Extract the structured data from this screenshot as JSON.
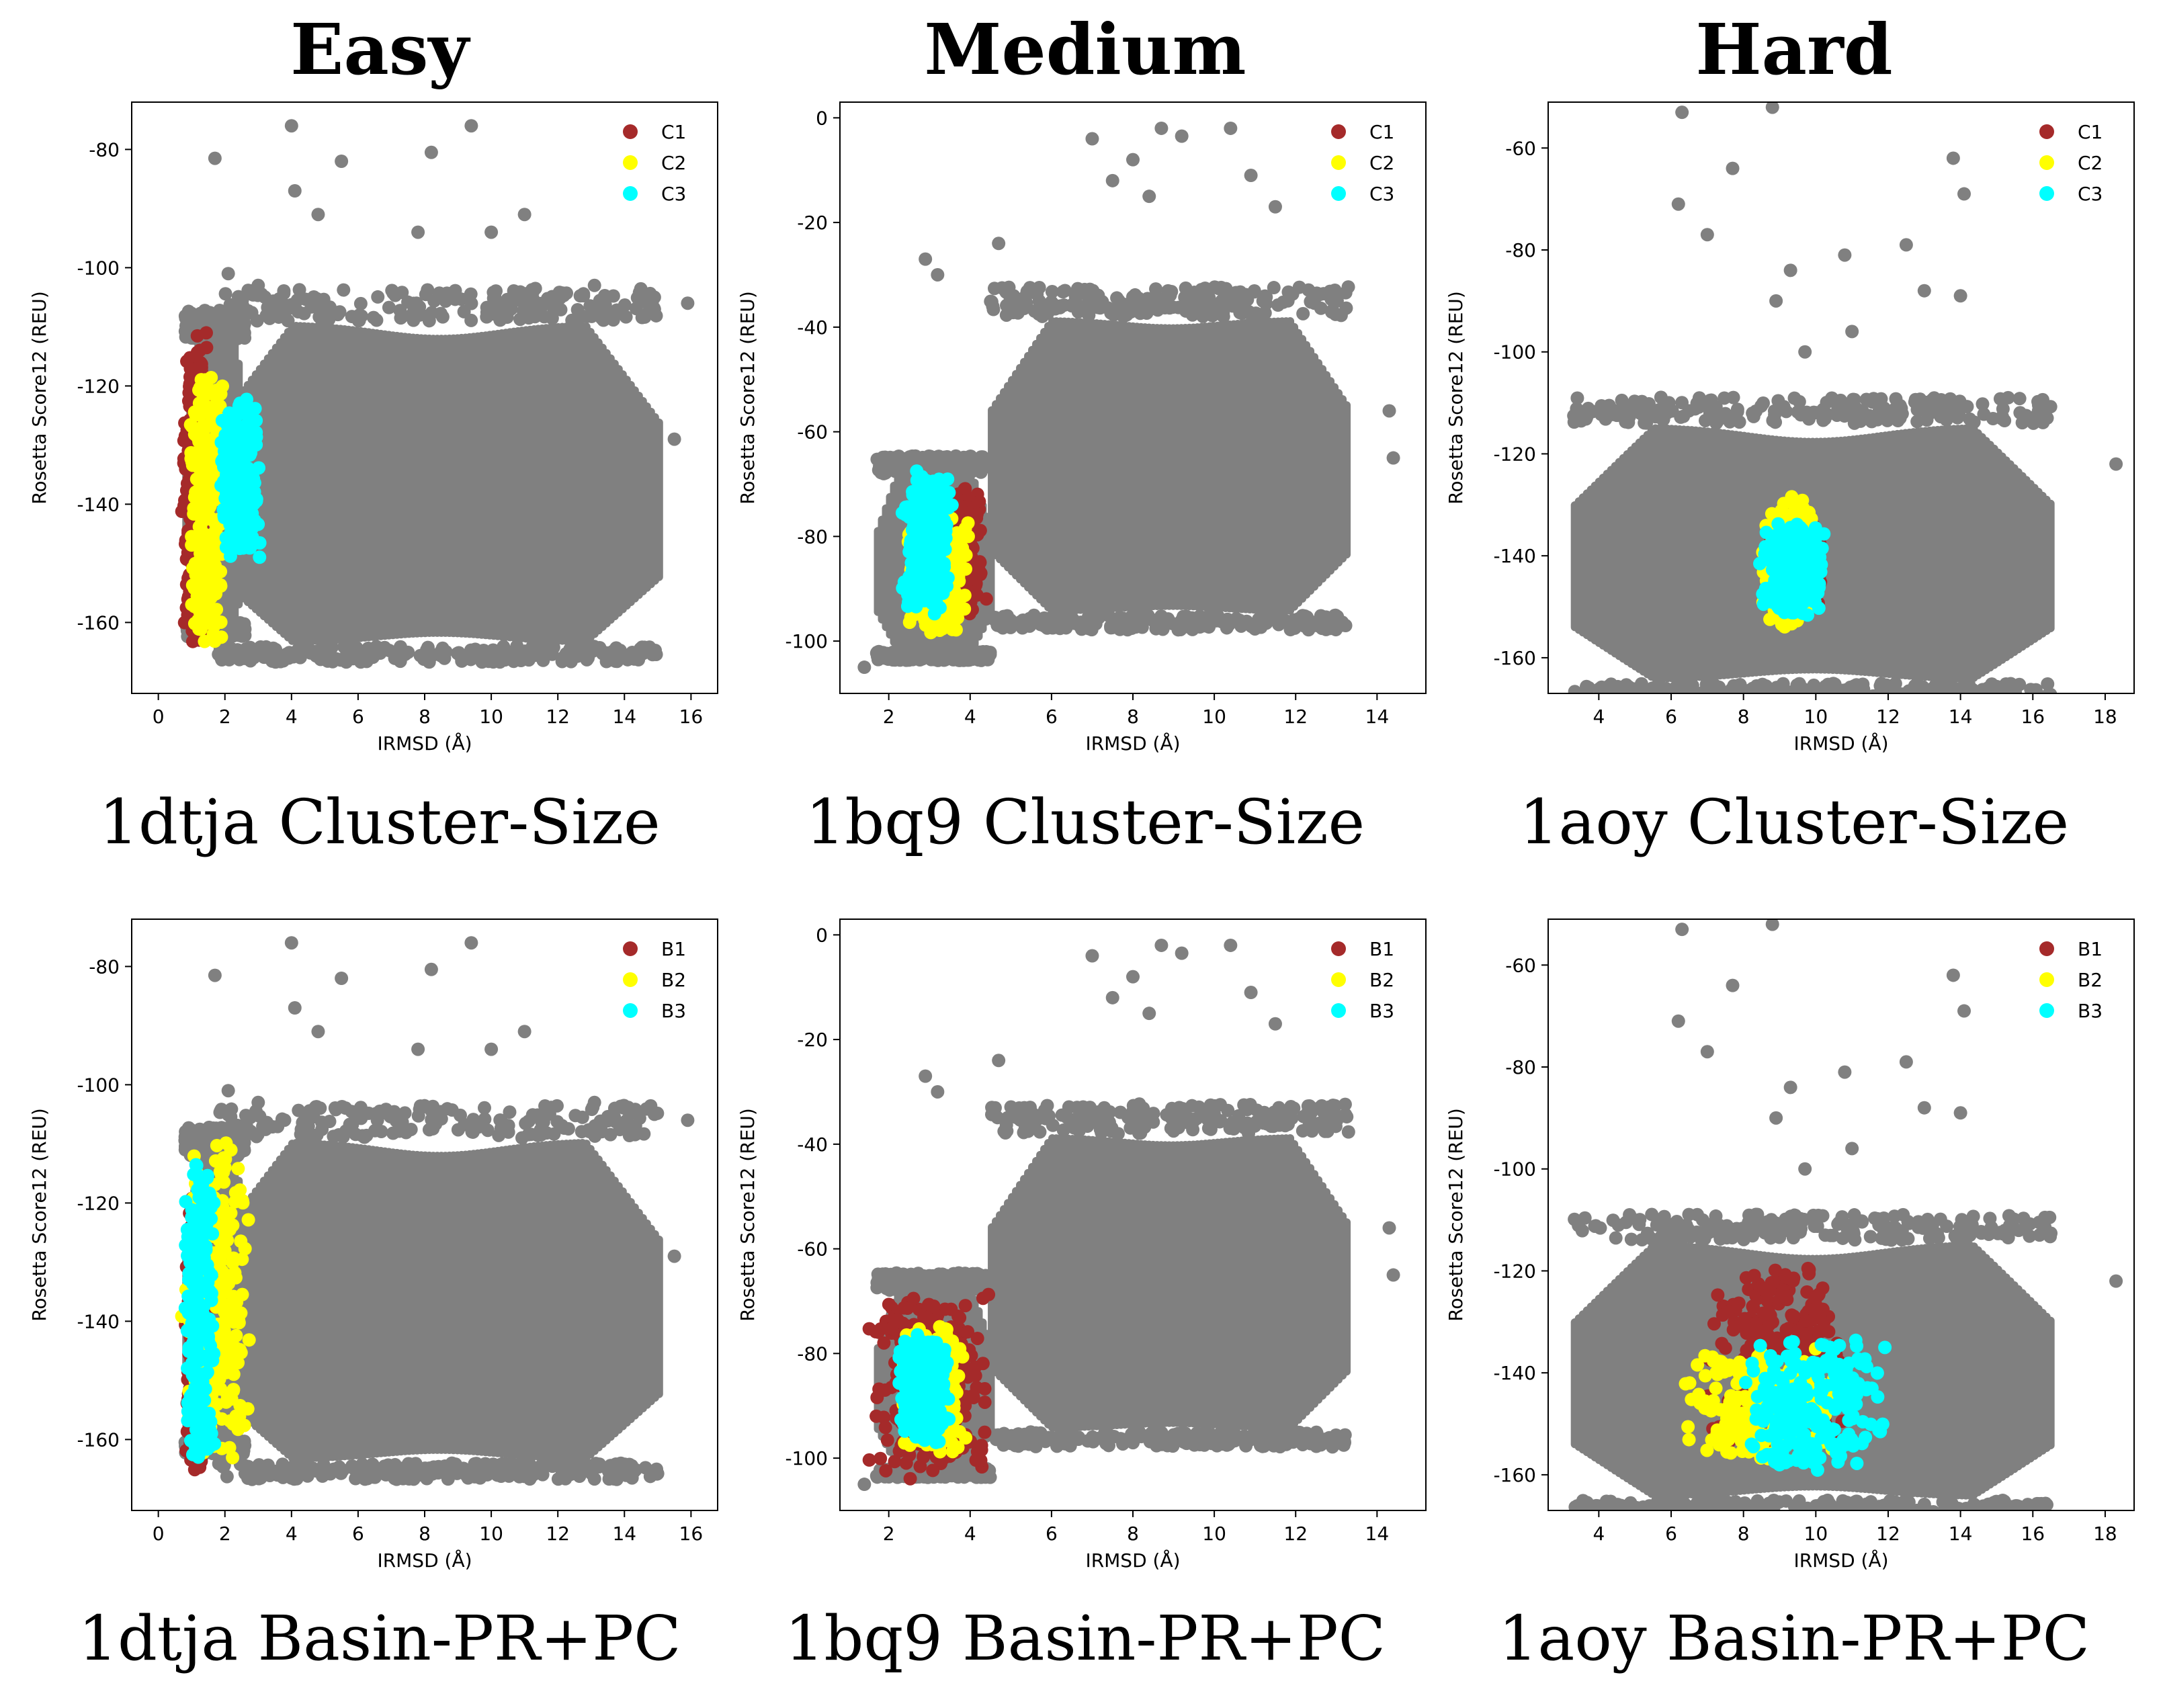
{
  "figure": {
    "column_titles": [
      "Easy",
      "Medium",
      "Hard"
    ],
    "captions": [
      "1dtja Cluster-Size",
      "1bq9 Cluster-Size",
      "1aoy Cluster-Size",
      "1dtja Basin-PR+PC",
      "1bq9 Basin-PR+PC",
      "1aoy Basin-PR+PC"
    ]
  },
  "colors": {
    "background_points": "#808080",
    "series_1": "#a52a2a",
    "series_2": "#ffff00",
    "series_3": "#00ffff"
  },
  "chart_data": [
    {
      "type": "scatter",
      "protein": "1dtja",
      "method": "Cluster-Size",
      "xlabel": "IRMSD (Å)",
      "ylabel": "Rosetta Score12 (REU)",
      "xlim": [
        -0.8,
        16.8
      ],
      "ylim": [
        -172,
        -72
      ],
      "xticks": [
        0,
        2,
        4,
        6,
        8,
        10,
        12,
        14,
        16
      ],
      "yticks": [
        -160,
        -140,
        -120,
        -100,
        -80
      ],
      "legend_position": "top-right",
      "background": {
        "blobs": [
          [
            1.8,
            15.0,
            -164,
            -109,
            -150,
            -128,
            7.8
          ],
          [
            0.8,
            2.6,
            -160,
            -112,
            0,
            0,
            0
          ]
        ],
        "outliers": [
          [
            4.0,
            -76
          ],
          [
            9.4,
            -76
          ],
          [
            1.7,
            -81.5
          ],
          [
            5.5,
            -82
          ],
          [
            8.2,
            -80.5
          ],
          [
            4.1,
            -87
          ],
          [
            4.8,
            -91
          ],
          [
            11.0,
            -91
          ],
          [
            7.8,
            -94
          ],
          [
            10.0,
            -94
          ],
          [
            2.1,
            -101
          ],
          [
            15.9,
            -106
          ],
          [
            15.5,
            -129
          ],
          [
            14.9,
            -105
          ],
          [
            3.0,
            -103
          ],
          [
            13.1,
            -103
          ]
        ]
      },
      "series": [
        {
          "name": "C1",
          "x_range": [
            0.7,
            1.6
          ],
          "y_range": [
            -167,
            -109
          ]
        },
        {
          "name": "C2",
          "x_range": [
            0.9,
            2.0
          ],
          "y_range": [
            -165,
            -116
          ]
        },
        {
          "name": "C3",
          "x_range": [
            1.8,
            3.1
          ],
          "y_range": [
            -150,
            -122
          ]
        }
      ]
    },
    {
      "type": "scatter",
      "protein": "1bq9",
      "method": "Cluster-Size",
      "xlabel": "IRMSD (Å)",
      "ylabel": "Rosetta Score12 (REU)",
      "xlim": [
        0.8,
        15.2
      ],
      "ylim": [
        -110,
        3
      ],
      "xticks": [
        2,
        4,
        6,
        8,
        10,
        12,
        14
      ],
      "yticks": [
        -100,
        -80,
        -60,
        -40,
        -20,
        0
      ],
      "legend_position": "top-right",
      "background": {
        "blobs": [
          [
            4.5,
            13.3,
            -95,
            -38,
            -65,
            -62,
            4.8
          ],
          [
            1.7,
            4.5,
            -102,
            -68,
            0,
            0,
            0
          ]
        ],
        "outliers": [
          [
            7.0,
            -4
          ],
          [
            8.7,
            -2
          ],
          [
            10.4,
            -2
          ],
          [
            9.2,
            -3.5
          ],
          [
            8.0,
            -8
          ],
          [
            10.9,
            -11
          ],
          [
            7.5,
            -12
          ],
          [
            8.4,
            -15
          ],
          [
            11.5,
            -17
          ],
          [
            2.9,
            -27
          ],
          [
            3.2,
            -30
          ],
          [
            4.7,
            -24
          ],
          [
            14.3,
            -56
          ],
          [
            14.4,
            -65
          ],
          [
            1.4,
            -105
          ],
          [
            2.2,
            -103
          ]
        ]
      },
      "series": [
        {
          "name": "C1",
          "x_range": [
            2.9,
            4.4
          ],
          "y_range": [
            -96,
            -70
          ]
        },
        {
          "name": "C2",
          "x_range": [
            2.4,
            4.0
          ],
          "y_range": [
            -99,
            -76
          ]
        },
        {
          "name": "C3",
          "x_range": [
            2.3,
            3.6
          ],
          "y_range": [
            -96,
            -67
          ]
        }
      ]
    },
    {
      "type": "scatter",
      "protein": "1aoy",
      "method": "Cluster-Size",
      "xlabel": "IRMSD (Å)",
      "ylabel": "Rosetta Score12 (REU)",
      "xlim": [
        2.6,
        18.8
      ],
      "ylim": [
        -167,
        -51
      ],
      "xticks": [
        4,
        6,
        8,
        10,
        12,
        14,
        16,
        18
      ],
      "yticks": [
        -160,
        -140,
        -120,
        -100,
        -80,
        -60
      ],
      "legend_position": "top-right",
      "background": {
        "blobs": [
          [
            3.3,
            16.5,
            -165,
            -114,
            -148,
            -130,
            9.5
          ]
        ],
        "outliers": [
          [
            6.3,
            -53
          ],
          [
            8.8,
            -52
          ],
          [
            13.8,
            -62
          ],
          [
            7.7,
            -64
          ],
          [
            14.1,
            -69
          ],
          [
            6.2,
            -71
          ],
          [
            7.0,
            -77
          ],
          [
            12.5,
            -79
          ],
          [
            10.8,
            -81
          ],
          [
            9.3,
            -84
          ],
          [
            13.0,
            -88
          ],
          [
            8.9,
            -90
          ],
          [
            14.0,
            -89
          ],
          [
            11.0,
            -96
          ],
          [
            9.7,
            -100
          ],
          [
            18.3,
            -122
          ],
          [
            4.0,
            -151
          ]
        ]
      },
      "series": [
        {
          "name": "C1",
          "x_range": [
            8.6,
            10.2
          ],
          "y_range": [
            -152,
            -133
          ]
        },
        {
          "name": "C2",
          "x_range": [
            8.5,
            10.0
          ],
          "y_range": [
            -154,
            -128
          ]
        },
        {
          "name": "C3",
          "x_range": [
            8.4,
            10.3
          ],
          "y_range": [
            -152,
            -133
          ]
        }
      ]
    },
    {
      "type": "scatter",
      "protein": "1dtja",
      "method": "Basin-PR+PC",
      "xlabel": "IRMSD (Å)",
      "ylabel": "Rosetta Score12 (REU)",
      "xlim": [
        -0.8,
        16.8
      ],
      "ylim": [
        -172,
        -72
      ],
      "xticks": [
        0,
        2,
        4,
        6,
        8,
        10,
        12,
        14,
        16
      ],
      "yticks": [
        -160,
        -140,
        -120,
        -100,
        -80
      ],
      "legend_position": "top-right",
      "background": {
        "blobs": [
          [
            1.8,
            15.0,
            -164,
            -109,
            -150,
            -128,
            7.8
          ],
          [
            0.8,
            2.6,
            -160,
            -112,
            0,
            0,
            0
          ]
        ],
        "outliers": [
          [
            4.0,
            -76
          ],
          [
            9.4,
            -76
          ],
          [
            1.7,
            -81.5
          ],
          [
            5.5,
            -82
          ],
          [
            8.2,
            -80.5
          ],
          [
            4.1,
            -87
          ],
          [
            4.8,
            -91
          ],
          [
            11.0,
            -91
          ],
          [
            7.8,
            -94
          ],
          [
            10.0,
            -94
          ],
          [
            2.1,
            -101
          ],
          [
            15.9,
            -106
          ],
          [
            15.5,
            -129
          ],
          [
            14.9,
            -105
          ],
          [
            3.0,
            -103
          ],
          [
            13.1,
            -103
          ]
        ]
      },
      "series": [
        {
          "name": "B1",
          "x_range": [
            0.8,
            1.5
          ],
          "y_range": [
            -167,
            -118
          ]
        },
        {
          "name": "B2",
          "x_range": [
            0.7,
            2.8
          ],
          "y_range": [
            -164,
            -109
          ]
        },
        {
          "name": "B3",
          "x_range": [
            0.8,
            1.7
          ],
          "y_range": [
            -164,
            -112
          ]
        }
      ]
    },
    {
      "type": "scatter",
      "protein": "1bq9",
      "method": "Basin-PR+PC",
      "xlabel": "IRMSD (Å)",
      "ylabel": "Rosetta Score12 (REU)",
      "xlim": [
        0.8,
        15.2
      ],
      "ylim": [
        -110,
        3
      ],
      "xticks": [
        2,
        4,
        6,
        8,
        10,
        12,
        14
      ],
      "yticks": [
        -100,
        -80,
        -60,
        -40,
        -20,
        0
      ],
      "legend_position": "top-right",
      "background": {
        "blobs": [
          [
            4.5,
            13.3,
            -95,
            -38,
            -65,
            -62,
            4.8
          ],
          [
            1.7,
            4.5,
            -102,
            -68,
            0,
            0,
            0
          ]
        ],
        "outliers": [
          [
            7.0,
            -4
          ],
          [
            8.7,
            -2
          ],
          [
            10.4,
            -2
          ],
          [
            9.2,
            -3.5
          ],
          [
            8.0,
            -8
          ],
          [
            10.9,
            -11
          ],
          [
            7.5,
            -12
          ],
          [
            8.4,
            -15
          ],
          [
            11.5,
            -17
          ],
          [
            2.9,
            -27
          ],
          [
            3.2,
            -30
          ],
          [
            4.7,
            -24
          ],
          [
            14.3,
            -56
          ],
          [
            14.4,
            -65
          ],
          [
            1.4,
            -105
          ],
          [
            2.2,
            -103
          ]
        ]
      },
      "series": [
        {
          "name": "B1",
          "x_range": [
            1.4,
            4.6
          ],
          "y_range": [
            -105,
            -68
          ]
        },
        {
          "name": "B2",
          "x_range": [
            2.3,
            3.9
          ],
          "y_range": [
            -99,
            -74
          ]
        },
        {
          "name": "B3",
          "x_range": [
            2.2,
            3.5
          ],
          "y_range": [
            -98,
            -76
          ]
        }
      ]
    },
    {
      "type": "scatter",
      "protein": "1aoy",
      "method": "Basin-PR+PC",
      "xlabel": "IRMSD (Å)",
      "ylabel": "Rosetta Score12 (REU)",
      "xlim": [
        2.6,
        18.8
      ],
      "ylim": [
        -167,
        -51
      ],
      "xticks": [
        4,
        6,
        8,
        10,
        12,
        14,
        16,
        18
      ],
      "yticks": [
        -160,
        -140,
        -120,
        -100,
        -80,
        -60
      ],
      "legend_position": "top-right",
      "background": {
        "blobs": [
          [
            3.3,
            16.5,
            -165,
            -114,
            -148,
            -130,
            9.5
          ]
        ],
        "outliers": [
          [
            6.3,
            -53
          ],
          [
            8.8,
            -52
          ],
          [
            13.8,
            -62
          ],
          [
            7.7,
            -64
          ],
          [
            14.1,
            -69
          ],
          [
            6.2,
            -71
          ],
          [
            7.0,
            -77
          ],
          [
            12.5,
            -79
          ],
          [
            10.8,
            -81
          ],
          [
            9.3,
            -84
          ],
          [
            13.0,
            -88
          ],
          [
            8.9,
            -90
          ],
          [
            14.0,
            -89
          ],
          [
            11.0,
            -96
          ],
          [
            9.7,
            -100
          ],
          [
            18.3,
            -122
          ],
          [
            4.0,
            -151
          ]
        ]
      },
      "series": [
        {
          "name": "B1",
          "x_range": [
            6.9,
            11.0
          ],
          "y_range": [
            -157,
            -117
          ]
        },
        {
          "name": "B2",
          "x_range": [
            6.2,
            10.9
          ],
          "y_range": [
            -158,
            -135
          ]
        },
        {
          "name": "B3",
          "x_range": [
            8.0,
            12.0
          ],
          "y_range": [
            -160,
            -133
          ]
        }
      ]
    }
  ]
}
